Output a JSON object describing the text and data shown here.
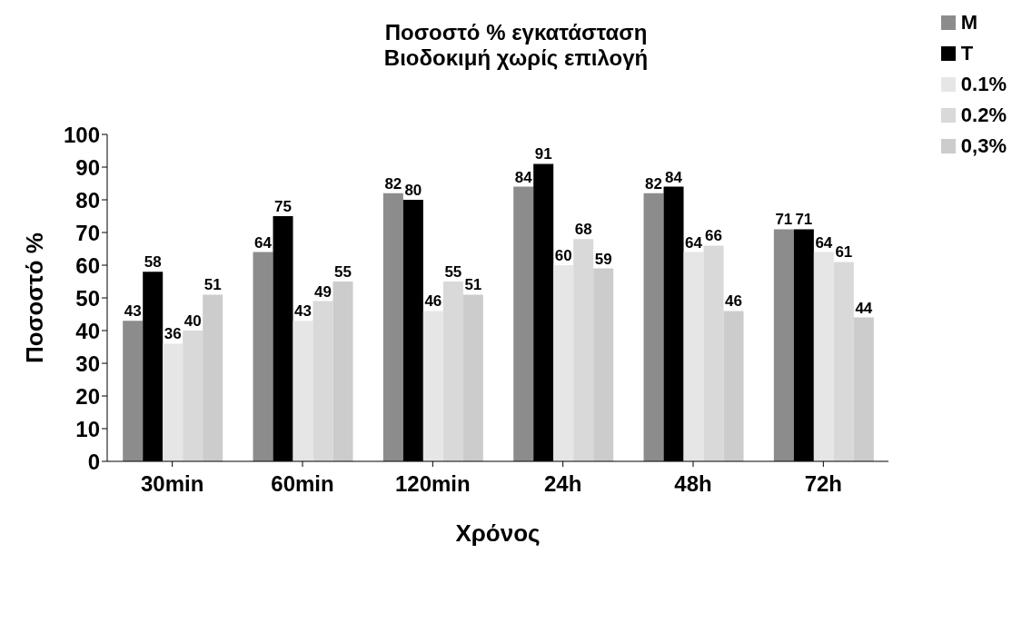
{
  "chart_data": {
    "type": "bar",
    "title": "Ποσοστό % εγκατάσταση",
    "subtitle": "Βιοδοκιμή χωρίς επιλογή",
    "xlabel": "Χρόνος",
    "ylabel": "Ποσοστό %",
    "categories": [
      "30min",
      "60min",
      "120min",
      "24h",
      "48h",
      "72h"
    ],
    "series": [
      {
        "name": "M",
        "color": "#8c8c8c",
        "values": [
          43,
          64,
          82,
          84,
          82,
          71
        ]
      },
      {
        "name": "T",
        "color": "#000000",
        "values": [
          58,
          75,
          80,
          91,
          84,
          71
        ]
      },
      {
        "name": "0.1%",
        "color": "#e6e6e6",
        "values": [
          36,
          43,
          46,
          60,
          64,
          64
        ]
      },
      {
        "name": "0.2%",
        "color": "#d9d9d9",
        "values": [
          40,
          49,
          55,
          68,
          66,
          61
        ]
      },
      {
        "name": "0,3%",
        "color": "#cccccc",
        "values": [
          51,
          55,
          51,
          59,
          46,
          44
        ]
      }
    ],
    "ylim": [
      0,
      100
    ],
    "yticks": [
      0,
      10,
      20,
      30,
      40,
      50,
      60,
      70,
      80,
      90,
      100
    ],
    "grid": false,
    "legend": "top right",
    "data_labels": true
  }
}
